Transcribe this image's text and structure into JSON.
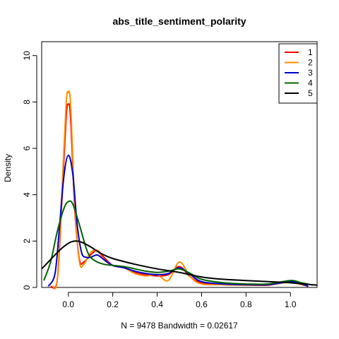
{
  "chart_data": {
    "type": "line",
    "title": "abs_title_sentiment_polarity",
    "xlabel": "N = 9478   Bandwidth = 0.02617",
    "ylabel": "Density",
    "xlim": [
      -0.12,
      1.12
    ],
    "ylim": [
      0,
      10.6
    ],
    "xticks": [
      0.0,
      0.2,
      0.4,
      0.6,
      0.8,
      1.0
    ],
    "xtick_labels": [
      "0.0",
      "0.2",
      "0.4",
      "0.6",
      "0.8",
      "1.0"
    ],
    "yticks": [
      0,
      2,
      4,
      6,
      8,
      10
    ],
    "ytick_labels": [
      "0",
      "2",
      "4",
      "6",
      "8",
      "10"
    ],
    "grid": false,
    "legend": "top-right",
    "series": [
      {
        "name": "1",
        "color": "#ff0000",
        "x": [
          -0.08,
          -0.05,
          -0.03,
          -0.01,
          0.0,
          0.01,
          0.03,
          0.05,
          0.07,
          0.1,
          0.13,
          0.16,
          0.2,
          0.25,
          0.3,
          0.35,
          0.4,
          0.45,
          0.5,
          0.55,
          0.6,
          0.7,
          0.8,
          0.9,
          1.0,
          1.05,
          1.08
        ],
        "y": [
          0.05,
          0.3,
          3.6,
          7.3,
          7.9,
          7.3,
          3.2,
          1.2,
          1.1,
          1.4,
          1.6,
          1.3,
          0.95,
          0.85,
          0.65,
          0.55,
          0.5,
          0.55,
          0.9,
          0.45,
          0.2,
          0.12,
          0.1,
          0.1,
          0.25,
          0.15,
          0.05
        ]
      },
      {
        "name": "2",
        "color": "#ff8c00",
        "x": [
          -0.07,
          -0.05,
          -0.03,
          -0.01,
          0.0,
          0.01,
          0.03,
          0.05,
          0.07,
          0.1,
          0.13,
          0.16,
          0.2,
          0.25,
          0.3,
          0.35,
          0.4,
          0.45,
          0.5,
          0.55,
          0.6,
          0.7,
          0.8,
          0.9,
          1.0,
          1.05,
          1.08
        ],
        "y": [
          0.05,
          0.3,
          3.9,
          7.9,
          8.4,
          7.9,
          3.4,
          1.1,
          1.0,
          1.5,
          1.6,
          1.2,
          0.95,
          0.85,
          0.6,
          0.5,
          0.55,
          0.3,
          1.1,
          0.45,
          0.15,
          0.12,
          0.1,
          0.12,
          0.22,
          0.12,
          0.05
        ]
      },
      {
        "name": "3",
        "color": "#0000cd",
        "x": [
          -0.09,
          -0.06,
          -0.04,
          -0.02,
          0.0,
          0.02,
          0.04,
          0.06,
          0.08,
          0.1,
          0.13,
          0.16,
          0.2,
          0.25,
          0.3,
          0.35,
          0.4,
          0.45,
          0.5,
          0.55,
          0.6,
          0.7,
          0.8,
          0.9,
          1.0,
          1.05,
          1.08
        ],
        "y": [
          0.05,
          0.6,
          2.6,
          4.8,
          5.7,
          4.9,
          2.7,
          1.5,
          1.3,
          1.3,
          1.4,
          1.2,
          0.95,
          0.85,
          0.7,
          0.6,
          0.55,
          0.6,
          0.85,
          0.55,
          0.25,
          0.15,
          0.12,
          0.12,
          0.25,
          0.15,
          0.05
        ]
      },
      {
        "name": "4",
        "color": "#006400",
        "x": [
          -0.11,
          -0.08,
          -0.05,
          -0.02,
          0.0,
          0.02,
          0.05,
          0.08,
          0.1,
          0.13,
          0.16,
          0.2,
          0.25,
          0.3,
          0.35,
          0.4,
          0.45,
          0.5,
          0.55,
          0.6,
          0.7,
          0.8,
          0.9,
          1.0,
          1.05,
          1.1
        ],
        "y": [
          0.3,
          1.1,
          2.4,
          3.4,
          3.7,
          3.6,
          2.7,
          1.7,
          1.3,
          1.1,
          1.0,
          0.95,
          0.9,
          0.8,
          0.7,
          0.65,
          0.7,
          0.8,
          0.6,
          0.35,
          0.2,
          0.15,
          0.15,
          0.3,
          0.2,
          0.1
        ]
      },
      {
        "name": "5",
        "color": "#000000",
        "x": [
          -0.12,
          -0.08,
          -0.04,
          0.0,
          0.03,
          0.06,
          0.1,
          0.15,
          0.2,
          0.3,
          0.4,
          0.5,
          0.6,
          0.7,
          0.8,
          0.9,
          1.0,
          1.12
        ],
        "y": [
          0.8,
          1.2,
          1.6,
          1.9,
          2.0,
          1.95,
          1.75,
          1.45,
          1.25,
          1.0,
          0.8,
          0.65,
          0.45,
          0.35,
          0.3,
          0.25,
          0.2,
          0.1
        ]
      }
    ]
  }
}
